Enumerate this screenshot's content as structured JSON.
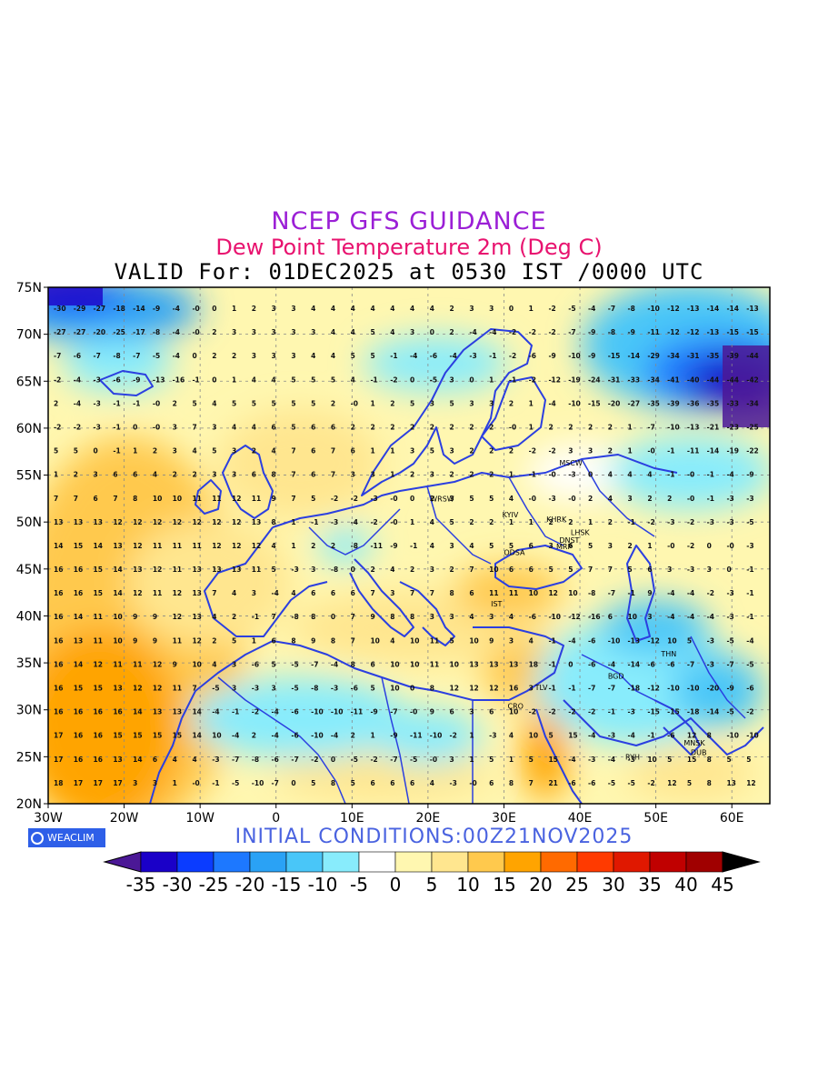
{
  "header": {
    "title": "NCEP GFS GUIDANCE",
    "subtitle": "Dew Point Temperature 2m (Deg C)",
    "valid": "VALID For: 01DEC2025 at 0530 IST /0000 UTC"
  },
  "footer": {
    "initial_conditions": "INITIAL CONDITIONS:00Z21NOV2025",
    "logo": "WEACLIM"
  },
  "axes": {
    "lat_labels": [
      "75N",
      "70N",
      "65N",
      "60N",
      "55N",
      "50N",
      "45N",
      "40N",
      "35N",
      "30N",
      "25N",
      "20N"
    ],
    "lon_labels": [
      "30W",
      "20W",
      "10W",
      "0",
      "10E",
      "20E",
      "30E",
      "40E",
      "50E",
      "60E"
    ]
  },
  "colorbar": {
    "labels": [
      "-35",
      "-30",
      "-25",
      "-20",
      "-15",
      "-10",
      "-5",
      "0",
      "5",
      "10",
      "15",
      "20",
      "25",
      "30",
      "35",
      "40",
      "45"
    ],
    "colors": [
      "#1a00c8",
      "#0b3cff",
      "#1d78ff",
      "#2aa2f5",
      "#49c6f8",
      "#88ecfc",
      "#ffffff",
      "#fff7b0",
      "#ffe68f",
      "#ffc94d",
      "#ffa400",
      "#ff6a00",
      "#ff3a00",
      "#e01800",
      "#c00000",
      "#a00000"
    ],
    "under_color": "#4b1896",
    "over_color": "#000000"
  },
  "cities": [
    {
      "name": "MSCW",
      "lon": 38,
      "lat": 56
    },
    {
      "name": "KYIV",
      "lon": 30.5,
      "lat": 50.5
    },
    {
      "name": "KHRK",
      "lon": 36.3,
      "lat": 50
    },
    {
      "name": "LHSK",
      "lon": 39.5,
      "lat": 48.6
    },
    {
      "name": "DNST",
      "lon": 38,
      "lat": 47.8
    },
    {
      "name": "WRSW",
      "lon": 21,
      "lat": 52.2
    },
    {
      "name": "ODSA",
      "lon": 30.7,
      "lat": 46.5
    },
    {
      "name": "MRP",
      "lon": 37.6,
      "lat": 47.1
    },
    {
      "name": "IST",
      "lon": 29,
      "lat": 41
    },
    {
      "name": "THN",
      "lon": 51.4,
      "lat": 35.7
    },
    {
      "name": "BGD",
      "lon": 44.4,
      "lat": 33.3
    },
    {
      "name": "TLV",
      "lon": 34.8,
      "lat": 32.1
    },
    {
      "name": "CRO",
      "lon": 31.2,
      "lat": 30.1
    },
    {
      "name": "MNSK",
      "lon": 54.4,
      "lat": 26.2
    },
    {
      "name": "RYH",
      "lon": 46.7,
      "lat": 24.7
    },
    {
      "name": "DUB",
      "lon": 55.3,
      "lat": 25.2
    }
  ],
  "grid_values": [
    [
      "-30",
      "-29",
      "-27",
      "-18",
      "-14",
      "-9",
      "-4",
      "-0",
      "0",
      "1",
      "2",
      "3",
      "3",
      "4",
      "4",
      "4",
      "4",
      "4",
      "4",
      "4",
      "2",
      "3",
      "3",
      "0",
      "1",
      "-2",
      "-5",
      "-4",
      "-7",
      "-8",
      "-10",
      "-12",
      "-13",
      "-14",
      "-14",
      "-13"
    ],
    [
      "-27",
      "-27",
      "-20",
      "-25",
      "-17",
      "-8",
      "-4",
      "-0",
      "2",
      "3",
      "3",
      "3",
      "3",
      "3",
      "4",
      "4",
      "5",
      "4",
      "3",
      "0",
      "2",
      "-4",
      "-4",
      "-2",
      "-2",
      "-2",
      "-7",
      "-9",
      "-8",
      "-9",
      "-11",
      "-12",
      "-12",
      "-13",
      "-15",
      "-15"
    ],
    [
      "-7",
      "-6",
      "-7",
      "-8",
      "-7",
      "-5",
      "-4",
      "0",
      "2",
      "2",
      "3",
      "3",
      "3",
      "4",
      "4",
      "5",
      "5",
      "-1",
      "-4",
      "-6",
      "-4",
      "-3",
      "-1",
      "-2",
      "-6",
      "-9",
      "-10",
      "-9",
      "-15",
      "-14",
      "-29",
      "-34",
      "-31",
      "-35",
      "-39",
      "-44"
    ],
    [
      "-2",
      "-4",
      "-3",
      "-6",
      "-9",
      "-13",
      "-16",
      "-1",
      "0",
      "1",
      "4",
      "4",
      "5",
      "5",
      "5",
      "4",
      "-1",
      "-2",
      "0",
      "-5",
      "3",
      "0",
      "1",
      "-1",
      "-2",
      "-12",
      "-19",
      "-24",
      "-31",
      "-33",
      "-34",
      "-41",
      "-40",
      "-44",
      "-44",
      "-42"
    ],
    [
      "2",
      "-4",
      "-3",
      "-1",
      "-1",
      "-0",
      "2",
      "5",
      "4",
      "5",
      "5",
      "5",
      "5",
      "5",
      "2",
      "-0",
      "1",
      "2",
      "5",
      "3",
      "5",
      "3",
      "3",
      "2",
      "1",
      "-4",
      "-10",
      "-15",
      "-20",
      "-27",
      "-35",
      "-39",
      "-36",
      "-35",
      "-33",
      "-34"
    ],
    [
      "-2",
      "-2",
      "-3",
      "-1",
      "0",
      "-0",
      "3",
      "7",
      "3",
      "4",
      "4",
      "6",
      "5",
      "6",
      "6",
      "2",
      "2",
      "2",
      "2",
      "2",
      "2",
      "2",
      "2",
      "-0",
      "1",
      "2",
      "2",
      "2",
      "2",
      "1",
      "-7",
      "-10",
      "-13",
      "-21",
      "-23",
      "-25"
    ],
    [
      "5",
      "5",
      "0",
      "-1",
      "1",
      "2",
      "3",
      "4",
      "5",
      "3",
      "2",
      "4",
      "7",
      "6",
      "7",
      "6",
      "1",
      "1",
      "3",
      "5",
      "3",
      "2",
      "2",
      "2",
      "-2",
      "-2",
      "3",
      "3",
      "2",
      "1",
      "-0",
      "-1",
      "-11",
      "-14",
      "-19",
      "-22"
    ],
    [
      "1",
      "2",
      "3",
      "6",
      "6",
      "4",
      "2",
      "2",
      "3",
      "3",
      "6",
      "8",
      "7",
      "6",
      "7",
      "3",
      "3",
      "1",
      "2",
      "3",
      "2",
      "2",
      "2",
      "1",
      "-1",
      "-0",
      "-3",
      "0",
      "4",
      "4",
      "4",
      "-1",
      "-0",
      "-1",
      "-4",
      "-9"
    ],
    [
      "7",
      "7",
      "6",
      "7",
      "8",
      "10",
      "10",
      "11",
      "11",
      "12",
      "11",
      "9",
      "7",
      "5",
      "-2",
      "-2",
      "-3",
      "-0",
      "0",
      "2",
      "3",
      "5",
      "5",
      "4",
      "-0",
      "-3",
      "-0",
      "2",
      "4",
      "3",
      "2",
      "2",
      "-0",
      "-1",
      "-3",
      "-3"
    ],
    [
      "13",
      "13",
      "13",
      "12",
      "12",
      "12",
      "12",
      "12",
      "12",
      "12",
      "13",
      "8",
      "1",
      "-1",
      "-3",
      "-4",
      "-2",
      "-0",
      "1",
      "4",
      "5",
      "2",
      "2",
      "1",
      "1",
      "2",
      "2",
      "1",
      "2",
      "-1",
      "-2",
      "-3",
      "-2",
      "-3",
      "-3",
      "-5"
    ],
    [
      "14",
      "15",
      "14",
      "13",
      "12",
      "11",
      "11",
      "11",
      "12",
      "12",
      "12",
      "4",
      "1",
      "2",
      "2",
      "-8",
      "-11",
      "-9",
      "-1",
      "4",
      "3",
      "4",
      "5",
      "5",
      "6",
      "3",
      "6",
      "5",
      "3",
      "2",
      "1",
      "-0",
      "-2",
      "0",
      "-0",
      "-3"
    ],
    [
      "16",
      "16",
      "15",
      "14",
      "13",
      "12",
      "11",
      "13",
      "13",
      "13",
      "11",
      "5",
      "-3",
      "3",
      "-8",
      "0",
      "2",
      "4",
      "2",
      "3",
      "2",
      "7",
      "10",
      "6",
      "6",
      "5",
      "5",
      "7",
      "7",
      "5",
      "6",
      "3",
      "-3",
      "3",
      "0",
      "-1"
    ],
    [
      "16",
      "16",
      "15",
      "14",
      "12",
      "11",
      "12",
      "13",
      "7",
      "4",
      "3",
      "-4",
      "4",
      "6",
      "6",
      "6",
      "7",
      "3",
      "7",
      "7",
      "8",
      "6",
      "11",
      "11",
      "10",
      "12",
      "10",
      "-8",
      "-7",
      "-1",
      "9",
      "-4",
      "-4",
      "-2",
      "-3",
      "-1"
    ],
    [
      "16",
      "14",
      "11",
      "10",
      "9",
      "9",
      "12",
      "13",
      "4",
      "2",
      "-1",
      "7",
      "-8",
      "8",
      "0",
      "7",
      "9",
      "8",
      "8",
      "3",
      "3",
      "4",
      "3",
      "4",
      "-6",
      "-10",
      "-12",
      "-16",
      "6",
      "10",
      "3",
      "-4",
      "-4",
      "-4",
      "-3",
      "-1"
    ],
    [
      "16",
      "13",
      "11",
      "10",
      "9",
      "9",
      "11",
      "12",
      "2",
      "5",
      "1",
      "6",
      "8",
      "9",
      "8",
      "7",
      "10",
      "4",
      "10",
      "11",
      "5",
      "10",
      "9",
      "3",
      "4",
      "-1",
      "-4",
      "-6",
      "-10",
      "-13",
      "-12",
      "10",
      "5",
      "-3",
      "-5",
      "-4"
    ],
    [
      "16",
      "14",
      "12",
      "11",
      "11",
      "12",
      "9",
      "10",
      "4",
      "3",
      "-6",
      "5",
      "-5",
      "-7",
      "-4",
      "8",
      "6",
      "10",
      "10",
      "11",
      "10",
      "13",
      "13",
      "13",
      "18",
      "-1",
      "0",
      "-6",
      "-4",
      "-14",
      "-6",
      "-6",
      "-7",
      "-3",
      "-7",
      "-5"
    ],
    [
      "16",
      "15",
      "15",
      "13",
      "12",
      "12",
      "11",
      "7",
      "-5",
      "3",
      "-3",
      "3",
      "-5",
      "-8",
      "-3",
      "-6",
      "5",
      "10",
      "0",
      "8",
      "12",
      "12",
      "12",
      "16",
      "3",
      "-1",
      "-1",
      "-7",
      "-7",
      "-18",
      "-12",
      "-10",
      "-10",
      "-20",
      "-9",
      "-6"
    ],
    [
      "16",
      "16",
      "16",
      "16",
      "14",
      "13",
      "13",
      "14",
      "-4",
      "-1",
      "-2",
      "-4",
      "-6",
      "-10",
      "-10",
      "-11",
      "-9",
      "-7",
      "-0",
      "9",
      "6",
      "3",
      "6",
      "10",
      "-2",
      "-2",
      "-2",
      "-2",
      "-1",
      "-3",
      "-15",
      "-15",
      "-18",
      "-14",
      "-5",
      "-2"
    ],
    [
      "17",
      "16",
      "16",
      "15",
      "15",
      "15",
      "15",
      "14",
      "10",
      "-4",
      "2",
      "-4",
      "-6",
      "-10",
      "-4",
      "2",
      "1",
      "-9",
      "-11",
      "-10",
      "-2",
      "1",
      "-3",
      "4",
      "10",
      "5",
      "15",
      "-4",
      "-3",
      "-4",
      "-1",
      "-6",
      "12",
      "8",
      "-10",
      "-10"
    ],
    [
      "17",
      "16",
      "16",
      "13",
      "14",
      "6",
      "4",
      "4",
      "-3",
      "-7",
      "-8",
      "-6",
      "-7",
      "-2",
      "0",
      "-5",
      "-2",
      "-7",
      "-5",
      "-0",
      "3",
      "1",
      "5",
      "1",
      "5",
      "15",
      "-4",
      "-3",
      "-4",
      "-3",
      "10",
      "5",
      "15",
      "8",
      "5",
      "5"
    ],
    [
      "18",
      "17",
      "17",
      "17",
      "3",
      "3",
      "1",
      "-0",
      "-1",
      "-5",
      "-10",
      "-7",
      "0",
      "5",
      "8",
      "5",
      "6",
      "6",
      "6",
      "4",
      "-3",
      "-0",
      "6",
      "8",
      "7",
      "21",
      "-6",
      "-6",
      "-5",
      "-5",
      "-2",
      "12",
      "5",
      "8",
      "13",
      "12"
    ]
  ]
}
